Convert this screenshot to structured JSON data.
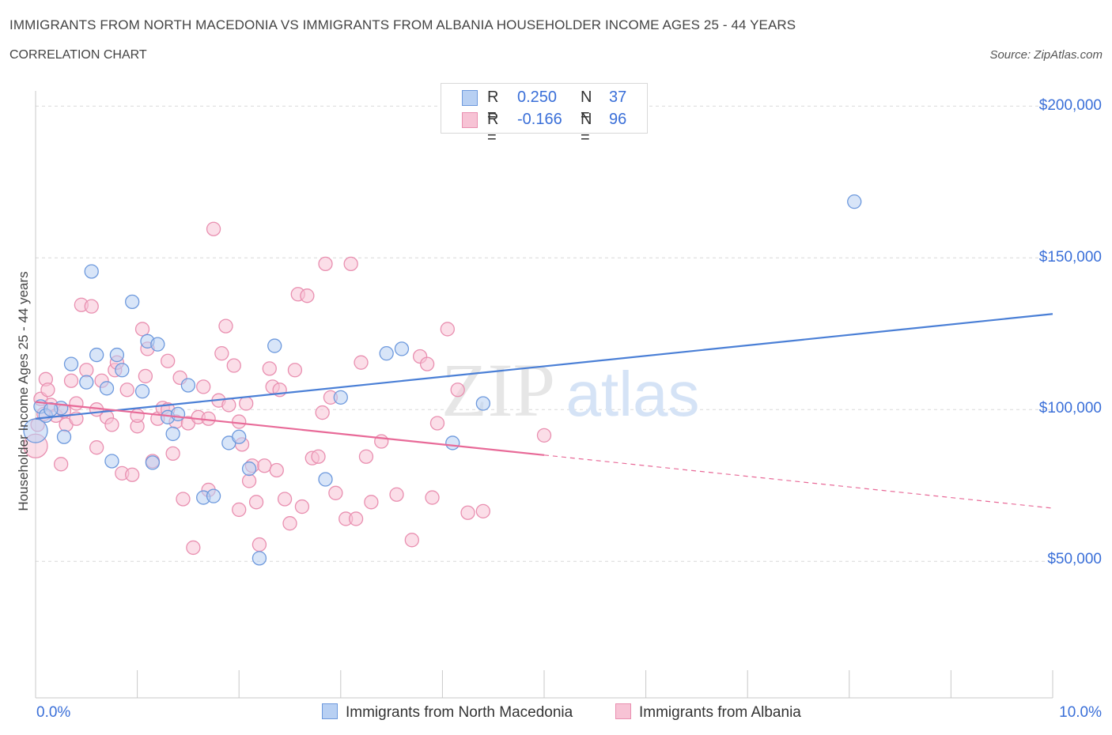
{
  "header": {
    "title": "IMMIGRANTS FROM NORTH MACEDONIA VS IMMIGRANTS FROM ALBANIA HOUSEHOLDER INCOME AGES 25 - 44 YEARS",
    "subtitle": "CORRELATION CHART",
    "source": "Source: ZipAtlas.com"
  },
  "watermark": {
    "zip": "ZIP",
    "atlas": "atlas"
  },
  "colors": {
    "blue": "#4a7fd6",
    "blue_fill": "#b8d0f3",
    "blue_stroke": "#6d99dd",
    "pink": "#e86a98",
    "pink_fill": "#f7c3d5",
    "pink_stroke": "#e98fb0",
    "grid": "#d9d9d9",
    "tick_text": "#3a6fd8"
  },
  "legend": {
    "rows": [
      {
        "r_label": "R =",
        "r_value": "0.250",
        "n_label": "N =",
        "n_value": "37",
        "color": "blue"
      },
      {
        "r_label": "R =",
        "r_value": "-0.166",
        "n_label": "N =",
        "n_value": "96",
        "color": "pink"
      }
    ],
    "bottom": [
      {
        "label": "Immigrants from North Macedonia",
        "color": "blue"
      },
      {
        "label": "Immigrants from Albania",
        "color": "pink"
      }
    ]
  },
  "chart_data": {
    "type": "scatter",
    "title": "IMMIGRANTS FROM NORTH MACEDONIA VS IMMIGRANTS FROM ALBANIA HOUSEHOLDER INCOME AGES 25 - 44 YEARS",
    "xlabel": "",
    "ylabel": "Householder Income Ages 25 - 44 years",
    "xlim": [
      0,
      10
    ],
    "ylim": [
      5000,
      205000
    ],
    "x_tick_labels": [
      "0.0%",
      "10.0%"
    ],
    "y_ticks": [
      50000,
      100000,
      150000,
      200000
    ],
    "y_tick_labels": [
      "$50,000",
      "$100,000",
      "$150,000",
      "$200,000"
    ],
    "grid": true,
    "series": [
      {
        "name": "Immigrants from North Macedonia",
        "color": "blue",
        "R": 0.25,
        "N": 37,
        "trend": {
          "x": [
            0,
            10
          ],
          "y": [
            97000,
            131500
          ],
          "dashed_from": null
        },
        "points": [
          [
            0.0,
            93000
          ],
          [
            0.05,
            101000
          ],
          [
            0.1,
            98000
          ],
          [
            0.25,
            100500
          ],
          [
            0.28,
            91000
          ],
          [
            0.35,
            115000
          ],
          [
            0.5,
            109000
          ],
          [
            0.55,
            145500
          ],
          [
            0.6,
            118000
          ],
          [
            0.7,
            107000
          ],
          [
            0.75,
            83000
          ],
          [
            0.8,
            118000
          ],
          [
            0.85,
            113000
          ],
          [
            0.95,
            135500
          ],
          [
            1.05,
            106000
          ],
          [
            1.1,
            122500
          ],
          [
            1.15,
            82500
          ],
          [
            1.2,
            121500
          ],
          [
            1.3,
            97500
          ],
          [
            1.35,
            92000
          ],
          [
            1.4,
            98500
          ],
          [
            1.5,
            108000
          ],
          [
            1.65,
            71000
          ],
          [
            1.75,
            71500
          ],
          [
            1.9,
            89000
          ],
          [
            2.0,
            91000
          ],
          [
            2.1,
            80500
          ],
          [
            2.2,
            51000
          ],
          [
            2.35,
            121000
          ],
          [
            2.85,
            77000
          ],
          [
            3.0,
            104000
          ],
          [
            3.45,
            118500
          ],
          [
            3.6,
            120000
          ],
          [
            4.1,
            89000
          ],
          [
            4.4,
            102000
          ],
          [
            8.05,
            168500
          ],
          [
            0.15,
            100000
          ]
        ]
      },
      {
        "name": "Immigrants from Albania",
        "color": "pink",
        "R": -0.166,
        "N": 96,
        "trend": {
          "x": [
            0,
            10
          ],
          "y": [
            102500,
            67500
          ],
          "dashed_from": 5
        },
        "points": [
          [
            0.0,
            88000
          ],
          [
            0.02,
            95000
          ],
          [
            0.05,
            103500
          ],
          [
            0.08,
            98500
          ],
          [
            0.1,
            110000
          ],
          [
            0.12,
            106500
          ],
          [
            0.15,
            101500
          ],
          [
            0.2,
            98000
          ],
          [
            0.25,
            82000
          ],
          [
            0.28,
            99500
          ],
          [
            0.3,
            95000
          ],
          [
            0.35,
            109500
          ],
          [
            0.4,
            102000
          ],
          [
            0.45,
            134500
          ],
          [
            0.5,
            113000
          ],
          [
            0.55,
            134000
          ],
          [
            0.6,
            87500
          ],
          [
            0.65,
            109500
          ],
          [
            0.7,
            97500
          ],
          [
            0.75,
            95000
          ],
          [
            0.78,
            113000
          ],
          [
            0.8,
            115500
          ],
          [
            0.85,
            79000
          ],
          [
            0.9,
            106500
          ],
          [
            0.95,
            78500
          ],
          [
            1.0,
            94500
          ],
          [
            1.05,
            126500
          ],
          [
            1.08,
            111000
          ],
          [
            1.1,
            120000
          ],
          [
            1.15,
            83000
          ],
          [
            1.2,
            97000
          ],
          [
            1.25,
            100500
          ],
          [
            1.3,
            116000
          ],
          [
            1.35,
            85500
          ],
          [
            1.38,
            96000
          ],
          [
            1.42,
            110500
          ],
          [
            1.45,
            70500
          ],
          [
            1.5,
            95500
          ],
          [
            1.55,
            54500
          ],
          [
            1.6,
            97500
          ],
          [
            1.65,
            107500
          ],
          [
            1.7,
            73500
          ],
          [
            1.75,
            159500
          ],
          [
            1.8,
            103000
          ],
          [
            1.83,
            118500
          ],
          [
            1.87,
            127500
          ],
          [
            1.9,
            101500
          ],
          [
            1.95,
            114500
          ],
          [
            2.0,
            67000
          ],
          [
            2.03,
            88500
          ],
          [
            2.07,
            102000
          ],
          [
            2.1,
            76500
          ],
          [
            2.13,
            81500
          ],
          [
            2.17,
            69500
          ],
          [
            2.2,
            55500
          ],
          [
            2.25,
            81500
          ],
          [
            2.3,
            113500
          ],
          [
            2.33,
            107500
          ],
          [
            2.37,
            80000
          ],
          [
            2.4,
            106500
          ],
          [
            2.45,
            70500
          ],
          [
            2.5,
            62500
          ],
          [
            2.55,
            113000
          ],
          [
            2.58,
            138000
          ],
          [
            2.62,
            68000
          ],
          [
            2.67,
            137500
          ],
          [
            2.72,
            84000
          ],
          [
            2.78,
            84500
          ],
          [
            2.82,
            99000
          ],
          [
            2.85,
            148000
          ],
          [
            2.9,
            104000
          ],
          [
            2.95,
            72500
          ],
          [
            3.05,
            64000
          ],
          [
            3.1,
            148000
          ],
          [
            3.15,
            64000
          ],
          [
            3.2,
            115500
          ],
          [
            3.25,
            84500
          ],
          [
            3.3,
            69500
          ],
          [
            3.4,
            89500
          ],
          [
            3.55,
            72000
          ],
          [
            3.7,
            57000
          ],
          [
            3.78,
            117500
          ],
          [
            3.85,
            115000
          ],
          [
            3.9,
            71000
          ],
          [
            3.95,
            95500
          ],
          [
            4.05,
            126500
          ],
          [
            4.15,
            106500
          ],
          [
            4.25,
            66000
          ],
          [
            4.4,
            66500
          ],
          [
            5.0,
            91500
          ],
          [
            0.4,
            97000
          ],
          [
            0.6,
            100000
          ],
          [
            1.0,
            98000
          ],
          [
            1.3,
            100000
          ],
          [
            1.7,
            97000
          ],
          [
            2.0,
            96000
          ]
        ]
      }
    ]
  }
}
